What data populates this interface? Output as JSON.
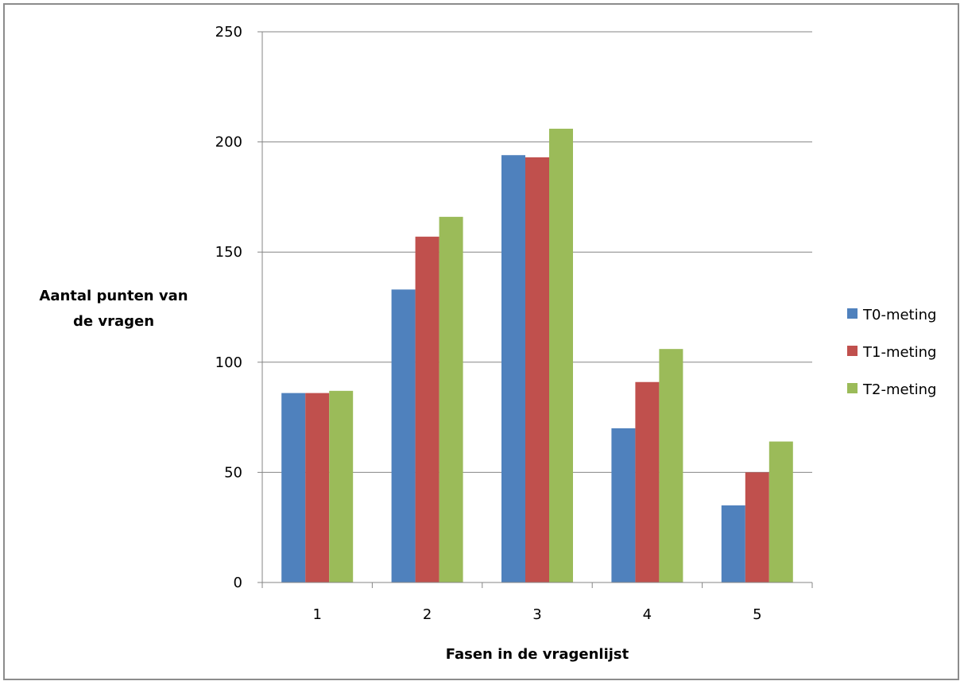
{
  "chart_data": {
    "type": "bar",
    "title": "",
    "categories": [
      "1",
      "2",
      "3",
      "4",
      "5"
    ],
    "series": [
      {
        "name": "T0-meting",
        "color": "#4f81bd",
        "values": [
          86,
          133,
          194,
          70,
          35
        ]
      },
      {
        "name": "T1-meting",
        "color": "#c0504d",
        "values": [
          86,
          157,
          193,
          91,
          50
        ]
      },
      {
        "name": "T2-meting",
        "color": "#9bbb59",
        "values": [
          87,
          166,
          206,
          106,
          64
        ]
      }
    ],
    "xlabel": "Fasen in de vragenlijst",
    "ylabel_lines": [
      "Aantal punten van",
      "de vragen"
    ],
    "ylim": [
      0,
      250
    ],
    "yticks": [
      "0",
      "50",
      "100",
      "150",
      "200",
      "250"
    ],
    "grid": true,
    "legend_position": "right"
  }
}
